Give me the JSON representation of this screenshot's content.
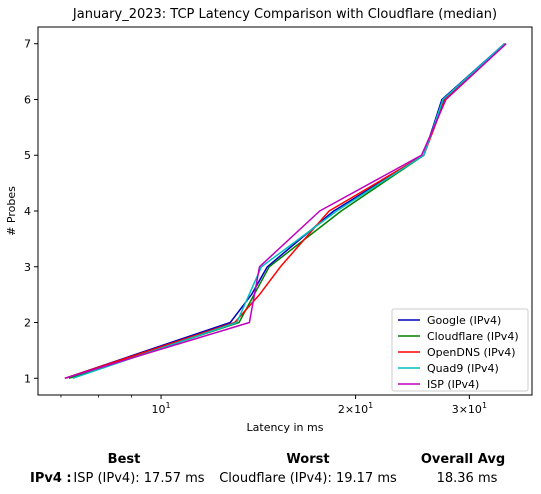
{
  "chart_data": {
    "type": "line",
    "title": "January_2023: TCP Latency Comparison with Cloudflare (median)",
    "xlabel": "Latency in ms",
    "ylabel": "# Probes",
    "xscale": "log",
    "xlim": [
      6.45,
      37.5
    ],
    "ylim": [
      0.7,
      7.3
    ],
    "x_tick_labels": [
      "10^1",
      "2×10^1",
      "3×10^1"
    ],
    "x_ticks": [
      10,
      20,
      30
    ],
    "y_ticks": [
      1,
      2,
      3,
      4,
      5,
      6,
      7
    ],
    "legend_position": "lower right",
    "grid": false,
    "series": [
      {
        "name": "Google (IPv4)",
        "color": "#0000bf",
        "points": [
          [
            7.1,
            1
          ],
          [
            12.8,
            2
          ],
          [
            13.8,
            2.5
          ],
          [
            14.6,
            3
          ],
          [
            18.5,
            4
          ],
          [
            25.5,
            5
          ],
          [
            27.2,
            6
          ],
          [
            34.0,
            7
          ]
        ]
      },
      {
        "name": "Cloudflare (IPv4)",
        "color": "#008000",
        "points": [
          [
            7.2,
            1
          ],
          [
            13.2,
            2
          ],
          [
            14.7,
            3
          ],
          [
            19.0,
            4
          ],
          [
            25.5,
            5
          ],
          [
            27.4,
            6
          ],
          [
            34.1,
            7
          ]
        ]
      },
      {
        "name": "OpenDNS (IPv4)",
        "color": "#ff0000",
        "points": [
          [
            7.1,
            1
          ],
          [
            13.0,
            2
          ],
          [
            14.2,
            2.5
          ],
          [
            15.3,
            3
          ],
          [
            18.2,
            4
          ],
          [
            25.5,
            5
          ],
          [
            27.5,
            6
          ],
          [
            34.2,
            7
          ]
        ]
      },
      {
        "name": "Quad9 (IPv4)",
        "color": "#00bfbf",
        "points": [
          [
            7.3,
            1
          ],
          [
            13.1,
            2
          ],
          [
            14.3,
            3
          ],
          [
            18.7,
            4
          ],
          [
            25.5,
            5
          ],
          [
            27.3,
            6
          ],
          [
            34.0,
            7
          ]
        ]
      },
      {
        "name": "ISP (IPv4)",
        "color": "#bf00bf",
        "points": [
          [
            7.1,
            1
          ],
          [
            13.7,
            2
          ],
          [
            14.2,
            3
          ],
          [
            17.6,
            4
          ],
          [
            25.3,
            5
          ],
          [
            27.6,
            6
          ],
          [
            34.2,
            7
          ]
        ]
      }
    ]
  },
  "summary": {
    "headers": {
      "best": "Best",
      "worst": "Worst",
      "avg": "Overall Avg"
    },
    "row_label": "IPv4 :",
    "best": "ISP (IPv4): 17.57 ms",
    "worst": "Cloudflare (IPv4): 19.17 ms",
    "avg": "18.36 ms"
  }
}
